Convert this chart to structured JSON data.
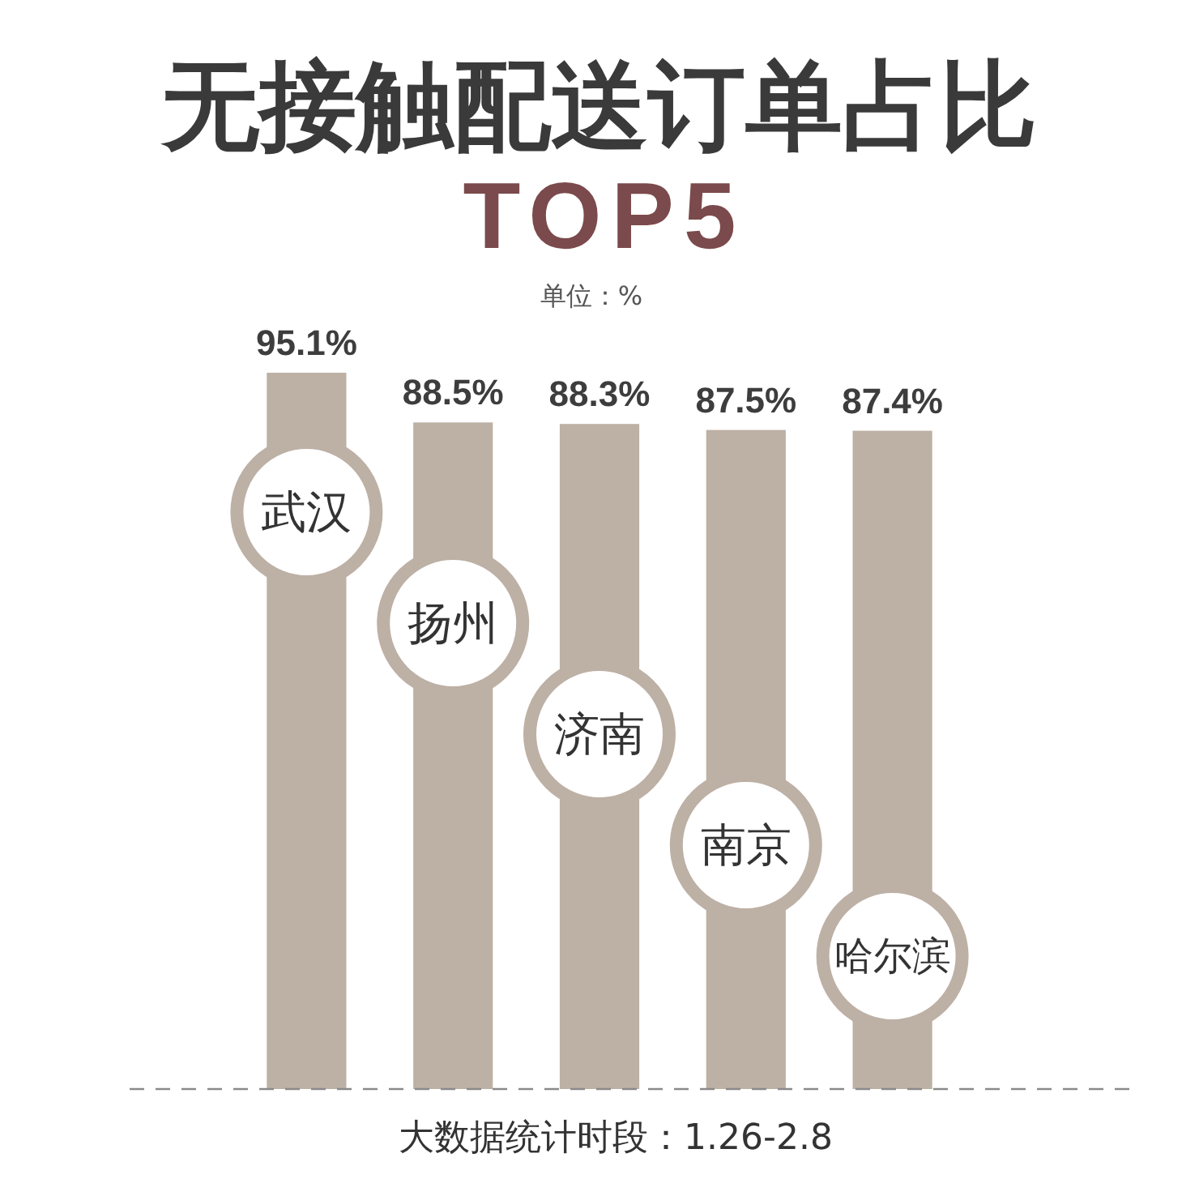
{
  "chart_data": {
    "type": "bar",
    "title": "无接触配送订单占比",
    "subtitle": "TOP5",
    "categories": [
      "武汉",
      "扬州",
      "济南",
      "南京",
      "哈尔滨"
    ],
    "values": [
      95.1,
      88.5,
      88.3,
      87.5,
      87.4
    ],
    "color": "#bdb0a5",
    "value_labels": [
      "95.1%",
      "88.5%",
      "88.3%",
      "87.5%",
      "87.4%"
    ],
    "annotations": [
      "单位：%",
      "大数据统计时段：1.26-2.8"
    ]
  }
}
